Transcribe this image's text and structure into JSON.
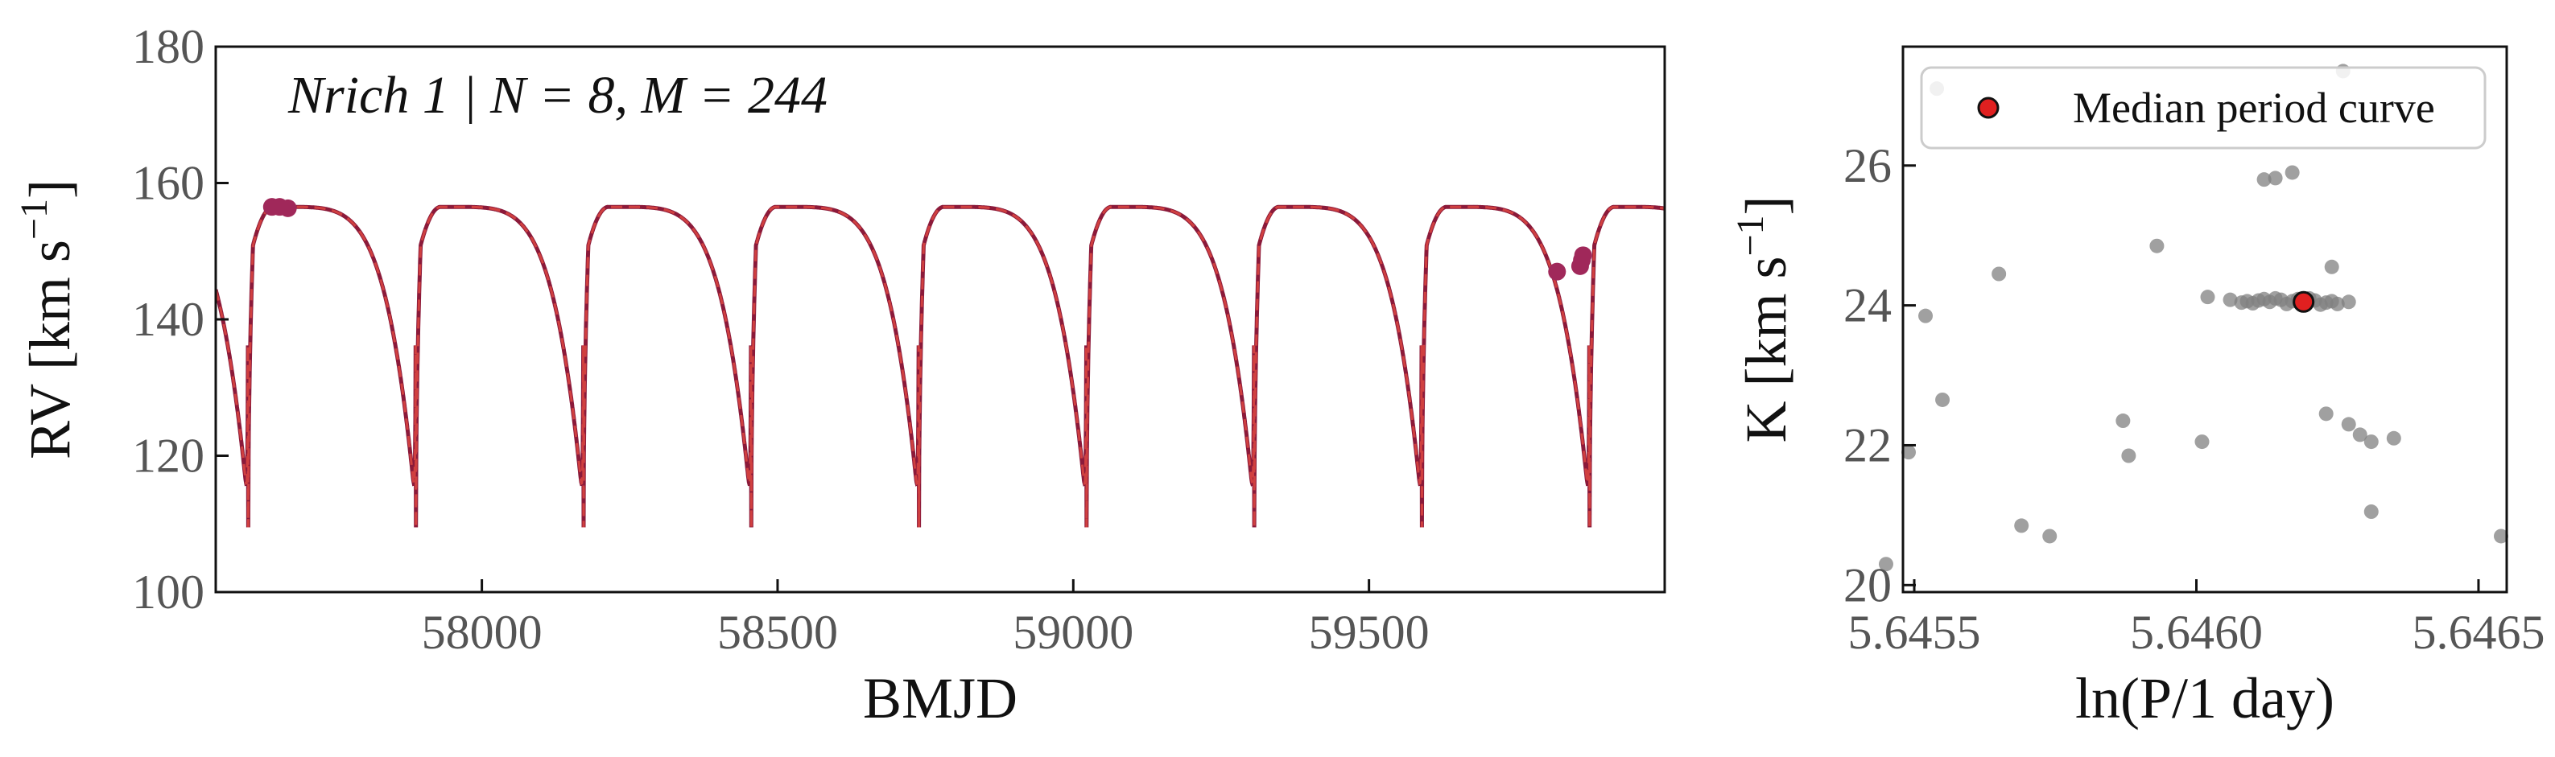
{
  "chart_data": [
    {
      "type": "line",
      "annotation": "Nrich 1 | N = 8, M = 244",
      "xlabel": "BMJD",
      "ylabel": "RV [km s",
      "ylabel_sup": "−1",
      "ylabel_close": "]",
      "xlim": [
        57550,
        60000
      ],
      "ylim": [
        100,
        180
      ],
      "xticks": [
        58000,
        58500,
        59000,
        59500
      ],
      "yticks": [
        100,
        120,
        140,
        160,
        180
      ],
      "orbit": {
        "period_days": 283.5,
        "first_minimum": 57605,
        "min_rv": 109.5,
        "max_rv": 156.5,
        "rise_time_days": 8,
        "line_colors": [
          "#8b1a3a",
          "#d04040"
        ]
      },
      "series": [
        {
          "points": [
            [
              57645,
              156.5
            ],
            [
              57658,
              156.5
            ],
            [
              57672,
              156.3
            ],
            [
              59818,
              147.0
            ],
            [
              59857,
              147.8
            ],
            [
              59860,
              148.7
            ],
            [
              59862,
              149.4
            ]
          ],
          "color": "#a0285a"
        }
      ]
    },
    {
      "type": "scatter",
      "xlabel": "ln(P/1 day)",
      "ylabel": "K [km s",
      "ylabel_sup": "−1",
      "ylabel_close": "]",
      "xlim": [
        5.64548,
        5.64655
      ],
      "ylim": [
        19.9,
        27.7
      ],
      "xticks": [
        "5.6455",
        "5.6460",
        "5.6465"
      ],
      "yticks": [
        "20",
        "22",
        "24",
        "26"
      ],
      "legend": {
        "label": "Median period curve",
        "placement": "top-right"
      },
      "samples": [
        [
          5.64554,
          27.1
        ],
        [
          5.64626,
          27.35
        ],
        [
          5.64612,
          25.8
        ],
        [
          5.64614,
          25.82
        ],
        [
          5.64617,
          25.9
        ],
        [
          5.64593,
          24.85
        ],
        [
          5.64565,
          24.45
        ],
        [
          5.64624,
          24.55
        ],
        [
          5.64602,
          24.12
        ],
        [
          5.64552,
          23.85
        ],
        [
          5.64555,
          22.65
        ],
        [
          5.64549,
          21.9
        ],
        [
          5.64587,
          22.35
        ],
        [
          5.64588,
          21.85
        ],
        [
          5.64601,
          22.05
        ],
        [
          5.64623,
          22.45
        ],
        [
          5.64627,
          22.3
        ],
        [
          5.64629,
          22.15
        ],
        [
          5.64631,
          22.05
        ],
        [
          5.64635,
          22.1
        ],
        [
          5.64569,
          20.85
        ],
        [
          5.64574,
          20.7
        ],
        [
          5.64631,
          21.05
        ],
        [
          5.64654,
          20.7
        ],
        [
          5.64545,
          20.3
        ],
        [
          5.64606,
          24.08
        ],
        [
          5.64609,
          24.06
        ],
        [
          5.64611,
          24.07
        ],
        [
          5.64613,
          24.05
        ],
        [
          5.64615,
          24.08
        ],
        [
          5.64617,
          24.06
        ],
        [
          5.64619,
          24.05
        ],
        [
          5.64621,
          24.07
        ],
        [
          5.64623,
          24.04
        ],
        [
          5.64625,
          24.02
        ],
        [
          5.64627,
          24.05
        ],
        [
          5.6461,
          24.03
        ],
        [
          5.64614,
          24.1
        ],
        [
          5.64618,
          24.09
        ],
        [
          5.64622,
          24.01
        ],
        [
          5.64616,
          24.02
        ],
        [
          5.6462,
          24.1
        ],
        [
          5.64612,
          24.09
        ],
        [
          5.64624,
          24.06
        ],
        [
          5.64608,
          24.04
        ]
      ],
      "sample_color": "#808080",
      "median": {
        "x": 5.64619,
        "y": 24.05,
        "color": "#e02020"
      }
    }
  ]
}
